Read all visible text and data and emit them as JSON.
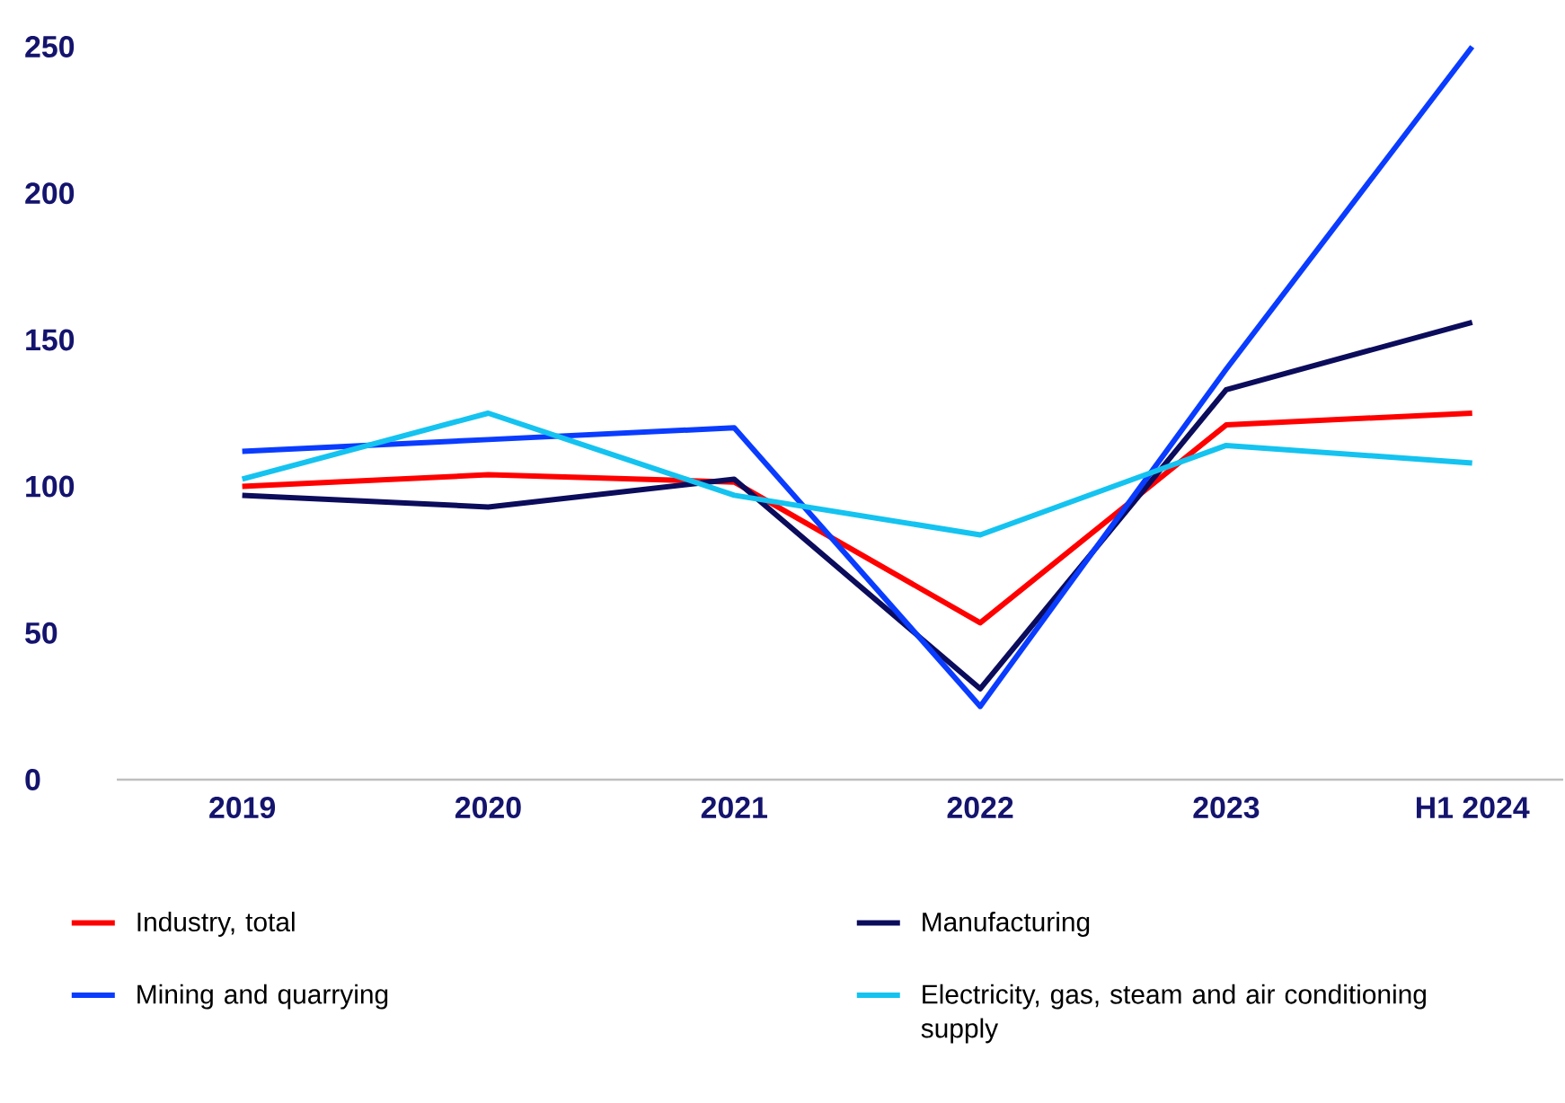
{
  "chart_data": {
    "type": "line",
    "categories": [
      "2019",
      "2020",
      "2021",
      "2022",
      "2023",
      "H1 2024"
    ],
    "series": [
      {
        "name": "Industry, total",
        "color": "#ff0000",
        "values": [
          100,
          104,
          101.5,
          53.5,
          121,
          125
        ]
      },
      {
        "name": "Manufacturing",
        "color": "#0c0c5c",
        "values": [
          97,
          93,
          102.5,
          31,
          133,
          156
        ]
      },
      {
        "name": "Mining and quarrying",
        "color": "#0a3cff",
        "values": [
          112,
          116,
          120,
          25,
          140,
          250
        ]
      },
      {
        "name": "Electricity, gas, steam and air conditioning supply",
        "color": "#14c3f0",
        "values": [
          102.5,
          125,
          97,
          83.5,
          114,
          108
        ]
      }
    ],
    "ylim": [
      0,
      250
    ],
    "yticks": [
      0,
      50,
      100,
      150,
      200,
      250
    ],
    "grid": false,
    "legend": "bottom",
    "marker": "none",
    "line_style": "solid"
  }
}
